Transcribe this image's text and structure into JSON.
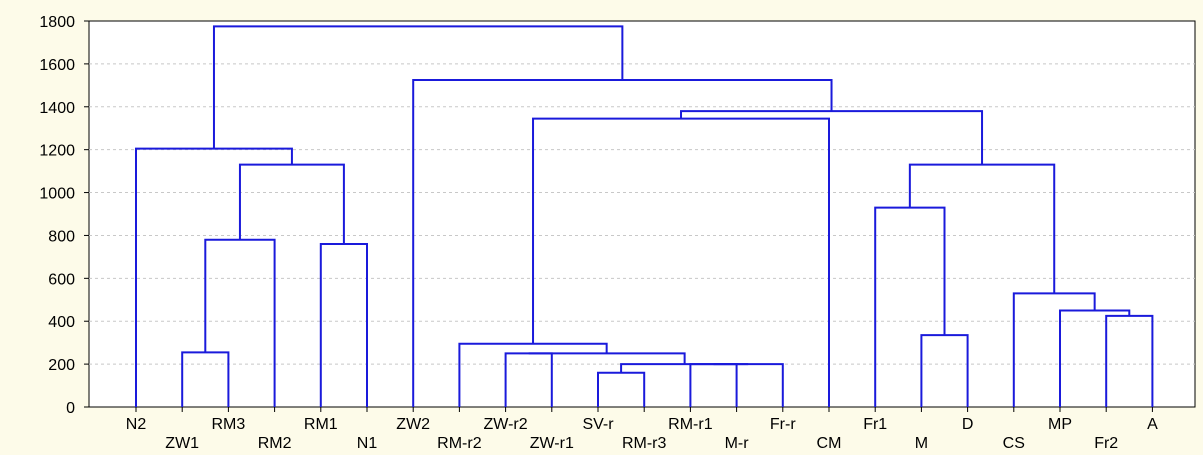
{
  "chart_data": {
    "type": "dendrogram",
    "ylim": [
      0,
      1800
    ],
    "yticks": [
      0,
      200,
      400,
      600,
      800,
      1000,
      1200,
      1400,
      1600,
      1800
    ],
    "grid": true,
    "colors": {
      "link": "#1a1adb",
      "background": "#fdfbe9",
      "plot": "#ffffff",
      "grid": "#c8c8c8"
    },
    "leaves": [
      "N2",
      "ZW1",
      "RM3",
      "RM2",
      "RM1",
      "N1",
      "ZW2",
      "RM-r2",
      "ZW-r2",
      "ZW-r1",
      "SV-r",
      "RM-r3",
      "RM-r1",
      "M-r",
      "Fr-r",
      "CM",
      "Fr1",
      "M",
      "D",
      "CS",
      "MP",
      "Fr2",
      "A"
    ],
    "merges": [
      {
        "a": "RM-r3",
        "b": "SV-r",
        "height": 160
      },
      {
        "a": "RM-r1",
        "b": "M-r",
        "height": 200
      },
      {
        "a": 1,
        "b": "Fr-r",
        "height": 200
      },
      {
        "a": 0,
        "b": 2,
        "height": 200
      },
      {
        "a": "ZW-r2",
        "b": "ZW-r1",
        "height": 250
      },
      {
        "a": 4,
        "b": 3,
        "height": 250
      },
      {
        "a": "RM-r2",
        "b": 5,
        "height": 295
      },
      {
        "a": "ZW1",
        "b": "RM3",
        "height": 255
      },
      {
        "a": "M",
        "b": "D",
        "height": 335
      },
      {
        "a": "Fr2",
        "b": "A",
        "height": 425
      },
      {
        "a": "MP",
        "b": 9,
        "height": 450
      },
      {
        "a": "CS",
        "b": 10,
        "height": 530
      },
      {
        "a": "RM1",
        "b": "N1",
        "height": 760
      },
      {
        "a": 7,
        "b": "RM2",
        "height": 780
      },
      {
        "a": "Fr1",
        "b": 8,
        "height": 930
      },
      {
        "a": 14,
        "b": 11,
        "height": 1130
      },
      {
        "a": 13,
        "b": 12,
        "height": 1130
      },
      {
        "a": "N2",
        "b": 16,
        "height": 1205
      },
      {
        "a": 6,
        "b": "CM",
        "height": 1345
      },
      {
        "a": 18,
        "b": 15,
        "height": 1380
      },
      {
        "a": "ZW2",
        "b": 19,
        "height": 1525
      },
      {
        "a": 17,
        "b": 20,
        "height": 1775
      }
    ]
  }
}
